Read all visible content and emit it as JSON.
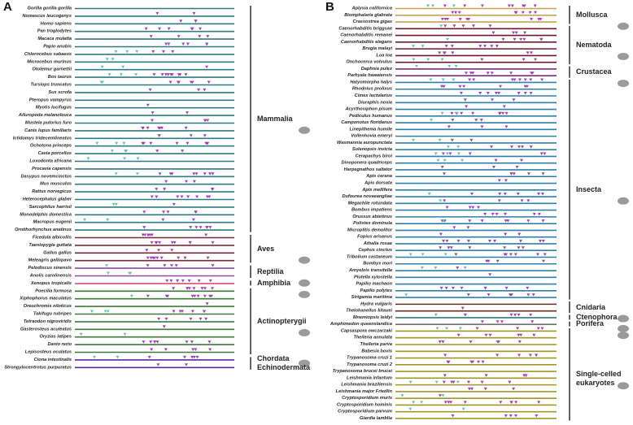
{
  "panels": [
    {
      "label": "A",
      "groups": [
        {
          "labels": [
            "Mammalia"
          ],
          "color": "#2f7c80",
          "rows": [
            "Gorilla gorilla gorilla",
            "Nomascus leucogenys",
            "Homo sapiens",
            "Pan troglodytes",
            "Macaca mulatta",
            "Papio anubis",
            "Chlorocebus sabaeus",
            "Microcebus murinus",
            "Otolemur garnettii",
            "Bos taurus",
            "Tursiops truncatus",
            "Sus scrofa",
            "Pteropus vampyrus",
            "Myotis lucifugus",
            "Ailuropoda melanoleuca",
            "Mustela putorius furo",
            "Canis lupus familiaris",
            "Ictidomys tridecemlineatus",
            "Ochotona princeps",
            "Cavia porcellus",
            "Loxodonta africana",
            "Procavia capensis",
            "Dasypus novemcinctus",
            "Mus musculus",
            "Rattus norvegicus",
            "Heterocephalus glaber",
            "Sarcophilus harrisii",
            "Monodelphis domestica",
            "Macropus eugenii",
            "Ornithorhynchus anatinus"
          ]
        },
        {
          "labels": [
            "Aves"
          ],
          "color": "#7a2a34",
          "rows": [
            "Ficedula albicollis",
            "Taeniopygia guttata",
            "Gallus gallus",
            "Meleagris gallopavo"
          ]
        },
        {
          "labels": [
            "Reptilia"
          ],
          "color": "#8a4aa8",
          "rows": [
            "Pelodiscus sinensis",
            "Anolis carolinensis"
          ]
        },
        {
          "labels": [
            "Amphibia"
          ],
          "color": "#d9507a",
          "rows": [
            "Xenopus tropicalis"
          ]
        },
        {
          "labels": [
            "Actinopterygii"
          ],
          "color": "#3d7a3a",
          "rows": [
            "Poecilia formosa",
            "Xiphophorus maculatus",
            "Oreochromis niloticus",
            "Takifugu rubripes",
            "Tetraodon nigroviridis",
            "Gasterosteus aculeatus",
            "Oryzias latipes",
            "Danio rerio",
            "Lepisosteus oculatus"
          ]
        },
        {
          "labels": [
            "Chordata",
            "Echinodermata"
          ],
          "color": "#5a2a9a",
          "rows": [
            "Ciona intestinalis",
            "Strongylocentrotus purpuratus"
          ]
        }
      ]
    },
    {
      "label": "B",
      "groups": [
        {
          "labels": [
            "Mollusca"
          ],
          "color": "#c9a052",
          "rows": [
            "Aplysia californica",
            "Biomphalaria glabrata",
            "Crassostrea gigas"
          ]
        },
        {
          "labels": [
            "Nematoda"
          ],
          "color": "#6b1a2e",
          "rows": [
            "Caenorhabditis briggsae",
            "Caenorhabditis remanei",
            "Caenorhabditis elegans",
            "Brugia malayi",
            "Loa loa",
            "Onchocerca volvulus"
          ]
        },
        {
          "labels": [
            "Crustacea"
          ],
          "color": "#7a2a7e",
          "rows": [
            "Daphnia pulex",
            "Parhyale hawaiensis"
          ]
        },
        {
          "labels": [
            "Insecta"
          ],
          "color": "#2f7fa8",
          "rows": [
            "Halyomorpha halys",
            "Rhodnius prolixus",
            "Cimex lectularius",
            "Diuraphis noxia",
            "Acyrthosiphon pisum",
            "Pediculus humanus",
            "Camponotus floridanus",
            "Linepithema humile",
            "Vollenhovia emeryi",
            "Wasmannia auropunctata",
            "Solenopsis invicta",
            "Cerapachys biroi",
            "Dinoponera quadriceps",
            "Harpegnathos saltator",
            "Apis cerana",
            "Apis dorsata",
            "Apis mellifera",
            "Dufourea novaeangliae",
            "Megachile rotundata",
            "Bombus impatiens",
            "Orussus abietinus",
            "Polistes dominula",
            "Microplitis demolitor",
            "Fopius arisanus",
            "Athalia rosae",
            "Cephus cinctus",
            "Tribolium castaneum",
            "Bombyx mori",
            "Amyelois transitella",
            "Plutella xylostella",
            "Papilio machaon",
            "Papilio polytes",
            "Strigamia maritima"
          ]
        },
        {
          "labels": [
            "Cnidaria"
          ],
          "color": "#6a3020",
          "rows": [
            "Hydra vulgaris",
            "Thelohanellus kitauei"
          ]
        },
        {
          "labels": [
            "Ctenophora"
          ],
          "color": "#2f7c80",
          "rows": [
            "Mnemiopsis leidyi"
          ]
        },
        {
          "labels": [
            "Porifera"
          ],
          "color": "#707070",
          "rows": [
            "Amphimedon queenslandica"
          ]
        },
        {
          "labels": [
            "Single-celled eukaryotes"
          ],
          "color": "#a39428",
          "rows": [
            "Capsaspora owczarzaki",
            "Theileria annulata",
            "Theileria parva",
            "Babesia bovis",
            "Trypanosoma cruzi 1",
            "Trypanosoma cruzi 2",
            "Trypanosoma brucei brucei",
            "Leishmania infantum",
            "Leishmania braziliensis",
            "Leishmania major Friedlin",
            "Cryptosporidium muris",
            "Cryptosporidium hominis",
            "Cryptosporidium parvum",
            "Giardia lamblia"
          ]
        }
      ]
    }
  ]
}
